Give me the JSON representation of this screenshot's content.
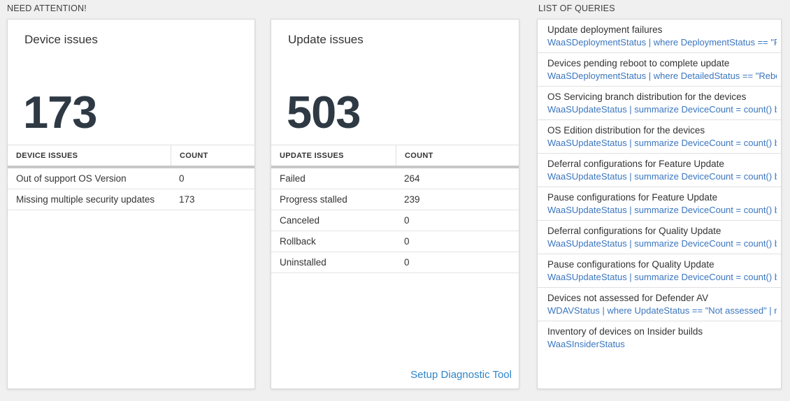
{
  "sections": {
    "need_attention_label": "NEED ATTENTION!",
    "queries_label": "LIST OF QUERIES"
  },
  "colors": {
    "page_bg": "#f0f0f0",
    "card_bg": "#ffffff",
    "card_border": "#d9d9d9",
    "big_number": "#2e3944",
    "query_code_blue": "#3b76bf",
    "link_blue": "#2e84c8",
    "table_header_bar": "#c8c8c8"
  },
  "cards": [
    {
      "title": "Device issues",
      "big_number": "173",
      "table": {
        "headers": [
          "DEVICE ISSUES",
          "COUNT"
        ],
        "rows": [
          {
            "label": "Out of support OS Version",
            "count": "0"
          },
          {
            "label": "Missing multiple security updates",
            "count": "173"
          }
        ]
      }
    },
    {
      "title": "Update issues",
      "big_number": "503",
      "table": {
        "headers": [
          "UPDATE ISSUES",
          "COUNT"
        ],
        "rows": [
          {
            "label": "Failed",
            "count": "264"
          },
          {
            "label": "Progress stalled",
            "count": "239"
          },
          {
            "label": "Canceled",
            "count": "0"
          },
          {
            "label": "Rollback",
            "count": "0"
          },
          {
            "label": "Uninstalled",
            "count": "0"
          }
        ]
      },
      "footer_link": "Setup Diagnostic Tool"
    }
  ],
  "queries": [
    {
      "title": "Update deployment failures",
      "query": "WaaSDeploymentStatus | where DeploymentStatus == \"Failed\" |..."
    },
    {
      "title": "Devices pending reboot to complete update",
      "query": "WaaSDeploymentStatus | where DetailedStatus == \"Reboot pend..."
    },
    {
      "title": "OS Servicing branch distribution for the devices",
      "query": "WaaSUpdateStatus | summarize DeviceCount = count() by OSSer..."
    },
    {
      "title": "OS Edition distribution for the devices",
      "query": "WaaSUpdateStatus | summarize DeviceCount = count() by OSEdit..."
    },
    {
      "title": "Deferral configurations for Feature Update",
      "query": "WaaSUpdateStatus | summarize DeviceCount = count() by Featur..."
    },
    {
      "title": "Pause configurations for Feature Update",
      "query": "WaaSUpdateStatus | summarize DeviceCount = count() by Featur..."
    },
    {
      "title": "Deferral configurations for Quality Update",
      "query": "WaaSUpdateStatus | summarize DeviceCount = count() by Qualit..."
    },
    {
      "title": "Pause configurations for Quality Update",
      "query": "WaaSUpdateStatus | summarize DeviceCount = count() by Qualit..."
    },
    {
      "title": "Devices not assessed for Defender AV",
      "query": "WDAVStatus | where UpdateStatus == \"Not assessed\" | render ta..."
    },
    {
      "title": "Inventory of devices on Insider builds",
      "query": "WaaSInsiderStatus"
    }
  ]
}
